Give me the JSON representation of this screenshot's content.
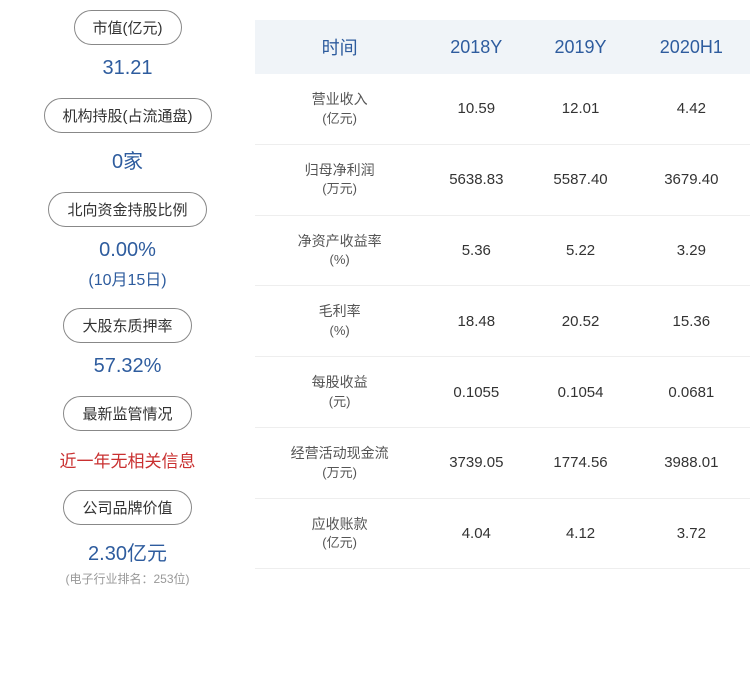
{
  "left": {
    "stats": [
      {
        "label": "市值(亿元)",
        "value": "31.21",
        "sub": null,
        "color": "blue"
      },
      {
        "label": "机构持股(占流通盘)",
        "value": "0家",
        "sub": null,
        "color": "blue"
      },
      {
        "label": "北向资金持股比例",
        "value": "0.00%",
        "sub": "(10月15日)",
        "color": "blue"
      },
      {
        "label": "大股东质押率",
        "value": "57.32%",
        "sub": null,
        "color": "blue"
      },
      {
        "label": "最新监管情况",
        "value": "近一年无相关信息",
        "sub": null,
        "color": "red"
      },
      {
        "label": "公司品牌价值",
        "value": "2.30亿元",
        "sub": "(电子行业排名：253位)",
        "color": "blue",
        "subGray": true
      }
    ]
  },
  "table": {
    "headers": [
      "时间",
      "2018Y",
      "2019Y",
      "2020H1"
    ],
    "rows": [
      {
        "metric": "营业收入",
        "unit": "(亿元)",
        "values": [
          "10.59",
          "12.01",
          "4.42"
        ]
      },
      {
        "metric": "归母净利润",
        "unit": "(万元)",
        "values": [
          "5638.83",
          "5587.40",
          "3679.40"
        ]
      },
      {
        "metric": "净资产收益率",
        "unit": "(%)",
        "values": [
          "5.36",
          "5.22",
          "3.29"
        ]
      },
      {
        "metric": "毛利率",
        "unit": "(%)",
        "values": [
          "18.48",
          "20.52",
          "15.36"
        ]
      },
      {
        "metric": "每股收益",
        "unit": "(元)",
        "values": [
          "0.1055",
          "0.1054",
          "0.0681"
        ]
      },
      {
        "metric": "经营活动现金流",
        "unit": "(万元)",
        "values": [
          "3739.05",
          "1774.56",
          "3988.01"
        ]
      },
      {
        "metric": "应收账款",
        "unit": "(亿元)",
        "values": [
          "4.04",
          "4.12",
          "3.72"
        ]
      }
    ]
  },
  "colors": {
    "accent": "#2e5c9e",
    "red": "#c93030",
    "gray": "#999",
    "headerBg": "#f0f4f8"
  }
}
